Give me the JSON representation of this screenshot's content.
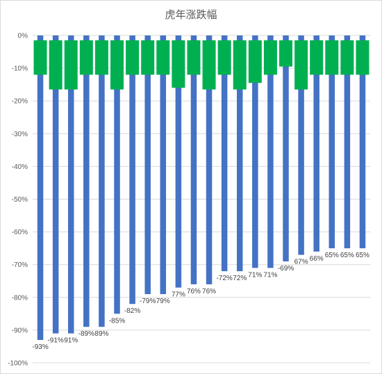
{
  "chart_data": {
    "type": "bar",
    "title": "虎年涨跌幅",
    "ylim": [
      -100,
      0
    ],
    "yticks": [
      0,
      -10,
      -20,
      -30,
      -40,
      -50,
      -60,
      -70,
      -80,
      -90,
      -100
    ],
    "ytick_labels": [
      "0%",
      "-10%",
      "-20%",
      "-30%",
      "-40%",
      "-50%",
      "-60%",
      "-70%",
      "-80%",
      "-90%",
      "-100%"
    ],
    "grid": true,
    "colors": {
      "bar": "#4472c4",
      "label_box": "#00b050",
      "grid": "#d9d9d9"
    },
    "categories": [
      "",
      "",
      "",
      "",
      "",
      "",
      "",
      "",
      "",
      "",
      "",
      "",
      "",
      "",
      "",
      "",
      "",
      "",
      "",
      "",
      "",
      ""
    ],
    "label_box_depth": [
      -12,
      -16.5,
      -16.5,
      -12,
      -12,
      -16.5,
      -12,
      -12,
      -12,
      -16,
      -12,
      -16.5,
      -12,
      -16.5,
      -14.5,
      -12,
      -9.5,
      -16.5,
      -12,
      -12,
      -12,
      -12
    ],
    "values": [
      -93,
      -91,
      -91,
      -89,
      -89,
      -85,
      -82,
      -79,
      -79,
      -77,
      -76,
      -76,
      -72,
      -72,
      -71,
      -71,
      -69,
      -67,
      -66,
      -65,
      -65,
      -65
    ],
    "data_labels": [
      "-93%",
      "-91%",
      "91%",
      "-89%",
      "89%",
      "-85%",
      "-82%",
      "-79%",
      "79%",
      "77%",
      "76%",
      "76%",
      "-72%",
      "72%",
      "71%",
      "71%",
      "-69%",
      "67%",
      "66%",
      "65%",
      "65%",
      "65%"
    ]
  }
}
